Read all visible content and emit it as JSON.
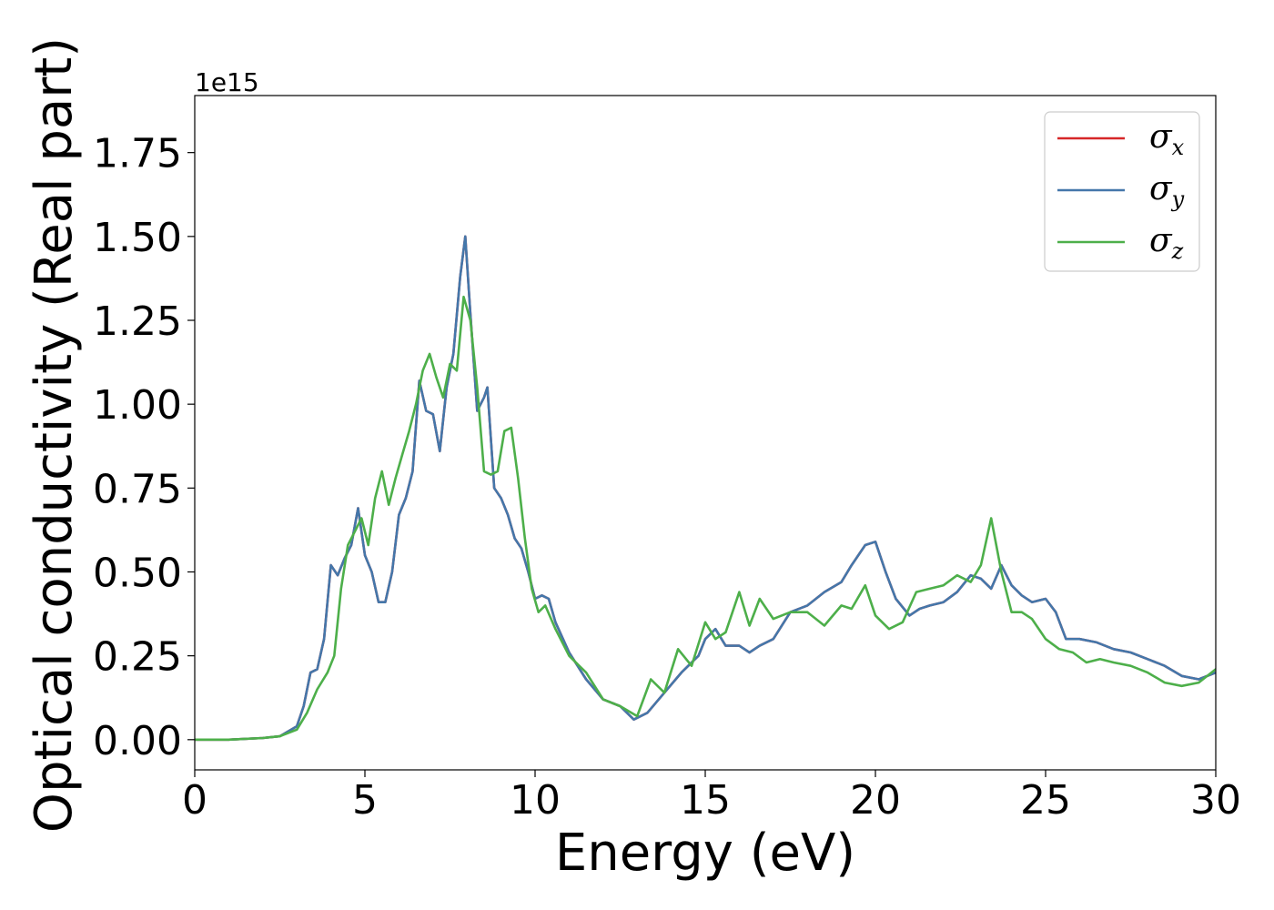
{
  "chart_data": {
    "type": "line",
    "xlabel": "Energy (eV)",
    "ylabel": "Optical conductivity (Real part)",
    "y_offset_label": "1e15",
    "xlim": [
      0,
      30
    ],
    "ylim": [
      -0.09,
      1.92
    ],
    "x_ticks": [
      0,
      5,
      10,
      15,
      20,
      25,
      30
    ],
    "y_ticks": [
      0.0,
      0.25,
      0.5,
      0.75,
      1.0,
      1.25,
      1.5,
      1.75
    ],
    "y_tick_labels": [
      "0.00",
      "0.25",
      "0.50",
      "0.75",
      "1.00",
      "1.25",
      "1.50",
      "1.75"
    ],
    "grid": false,
    "legend_position": "top-right",
    "series": [
      {
        "name": "σx",
        "legend_base": "σ",
        "legend_sub": "x",
        "color": "#d62728",
        "x": [
          0,
          1,
          2,
          2.5,
          3,
          3.2,
          3.4,
          3.6,
          3.8,
          4.0,
          4.2,
          4.4,
          4.6,
          4.8,
          5.0,
          5.2,
          5.4,
          5.6,
          5.8,
          6.0,
          6.2,
          6.4,
          6.6,
          6.8,
          7.0,
          7.2,
          7.4,
          7.6,
          7.8,
          7.95,
          8.1,
          8.3,
          8.5,
          8.6,
          8.8,
          9.0,
          9.2,
          9.4,
          9.6,
          9.8,
          10.0,
          10.2,
          10.4,
          10.6,
          11.0,
          11.5,
          12.0,
          12.5,
          12.9,
          13.3,
          13.8,
          14.3,
          14.8,
          15.0,
          15.3,
          15.6,
          16.0,
          16.3,
          16.6,
          17.0,
          17.5,
          18.0,
          18.5,
          19.0,
          19.3,
          19.7,
          20.0,
          20.3,
          20.6,
          21.0,
          21.3,
          21.6,
          22.0,
          22.4,
          22.8,
          23.1,
          23.4,
          23.7,
          24.0,
          24.3,
          24.6,
          25.0,
          25.3,
          25.6,
          26.0,
          26.5,
          27.0,
          27.5,
          28.0,
          28.5,
          29.0,
          29.5,
          30.0
        ],
        "values": [
          0,
          0,
          0.005,
          0.01,
          0.04,
          0.1,
          0.2,
          0.21,
          0.3,
          0.52,
          0.49,
          0.54,
          0.58,
          0.69,
          0.55,
          0.5,
          0.41,
          0.41,
          0.5,
          0.67,
          0.72,
          0.8,
          1.07,
          0.98,
          0.97,
          0.86,
          1.05,
          1.15,
          1.38,
          1.5,
          1.27,
          0.98,
          1.02,
          1.05,
          0.75,
          0.72,
          0.67,
          0.6,
          0.57,
          0.5,
          0.42,
          0.43,
          0.42,
          0.35,
          0.26,
          0.18,
          0.12,
          0.1,
          0.06,
          0.08,
          0.14,
          0.2,
          0.25,
          0.3,
          0.33,
          0.28,
          0.28,
          0.26,
          0.28,
          0.3,
          0.38,
          0.4,
          0.44,
          0.47,
          0.52,
          0.58,
          0.59,
          0.5,
          0.42,
          0.37,
          0.39,
          0.4,
          0.41,
          0.44,
          0.49,
          0.48,
          0.45,
          0.52,
          0.46,
          0.43,
          0.41,
          0.42,
          0.38,
          0.3,
          0.3,
          0.29,
          0.27,
          0.26,
          0.24,
          0.22,
          0.19,
          0.18,
          0.2
        ]
      },
      {
        "name": "σy",
        "legend_base": "σ",
        "legend_sub": "y",
        "color": "#4477aa",
        "x": [
          0,
          1,
          2,
          2.5,
          3,
          3.2,
          3.4,
          3.6,
          3.8,
          4.0,
          4.2,
          4.4,
          4.6,
          4.8,
          5.0,
          5.2,
          5.4,
          5.6,
          5.8,
          6.0,
          6.2,
          6.4,
          6.6,
          6.8,
          7.0,
          7.2,
          7.4,
          7.6,
          7.8,
          7.95,
          8.1,
          8.3,
          8.5,
          8.6,
          8.8,
          9.0,
          9.2,
          9.4,
          9.6,
          9.8,
          10.0,
          10.2,
          10.4,
          10.6,
          11.0,
          11.5,
          12.0,
          12.5,
          12.9,
          13.3,
          13.8,
          14.3,
          14.8,
          15.0,
          15.3,
          15.6,
          16.0,
          16.3,
          16.6,
          17.0,
          17.5,
          18.0,
          18.5,
          19.0,
          19.3,
          19.7,
          20.0,
          20.3,
          20.6,
          21.0,
          21.3,
          21.6,
          22.0,
          22.4,
          22.8,
          23.1,
          23.4,
          23.7,
          24.0,
          24.3,
          24.6,
          25.0,
          25.3,
          25.6,
          26.0,
          26.5,
          27.0,
          27.5,
          28.0,
          28.5,
          29.0,
          29.5,
          30.0
        ],
        "values": [
          0,
          0,
          0.005,
          0.01,
          0.04,
          0.1,
          0.2,
          0.21,
          0.3,
          0.52,
          0.49,
          0.54,
          0.58,
          0.69,
          0.55,
          0.5,
          0.41,
          0.41,
          0.5,
          0.67,
          0.72,
          0.8,
          1.07,
          0.98,
          0.97,
          0.86,
          1.05,
          1.15,
          1.38,
          1.5,
          1.27,
          0.98,
          1.02,
          1.05,
          0.75,
          0.72,
          0.67,
          0.6,
          0.57,
          0.5,
          0.42,
          0.43,
          0.42,
          0.35,
          0.26,
          0.18,
          0.12,
          0.1,
          0.06,
          0.08,
          0.14,
          0.2,
          0.25,
          0.3,
          0.33,
          0.28,
          0.28,
          0.26,
          0.28,
          0.3,
          0.38,
          0.4,
          0.44,
          0.47,
          0.52,
          0.58,
          0.59,
          0.5,
          0.42,
          0.37,
          0.39,
          0.4,
          0.41,
          0.44,
          0.49,
          0.48,
          0.45,
          0.52,
          0.46,
          0.43,
          0.41,
          0.42,
          0.38,
          0.3,
          0.3,
          0.29,
          0.27,
          0.26,
          0.24,
          0.22,
          0.19,
          0.18,
          0.2
        ]
      },
      {
        "name": "σz",
        "legend_base": "σ",
        "legend_sub": "z",
        "color": "#4daf4a",
        "x": [
          0,
          1,
          2,
          2.5,
          3,
          3.3,
          3.6,
          3.9,
          4.1,
          4.3,
          4.5,
          4.7,
          4.9,
          5.1,
          5.3,
          5.5,
          5.7,
          5.9,
          6.1,
          6.3,
          6.5,
          6.7,
          6.9,
          7.1,
          7.3,
          7.5,
          7.7,
          7.9,
          8.1,
          8.3,
          8.5,
          8.7,
          8.9,
          9.1,
          9.3,
          9.5,
          9.7,
          9.9,
          10.1,
          10.3,
          10.6,
          11.0,
          11.5,
          12.0,
          12.5,
          13.0,
          13.4,
          13.8,
          14.2,
          14.6,
          15.0,
          15.3,
          15.6,
          16.0,
          16.3,
          16.6,
          17.0,
          17.5,
          18.0,
          18.5,
          19.0,
          19.3,
          19.7,
          20.0,
          20.4,
          20.8,
          21.2,
          21.6,
          22.0,
          22.4,
          22.8,
          23.1,
          23.4,
          23.7,
          24.0,
          24.3,
          24.6,
          25.0,
          25.4,
          25.8,
          26.2,
          26.6,
          27.0,
          27.5,
          28.0,
          28.5,
          29.0,
          29.5,
          30.0
        ],
        "values": [
          0,
          0,
          0.005,
          0.01,
          0.03,
          0.08,
          0.15,
          0.2,
          0.25,
          0.45,
          0.58,
          0.62,
          0.66,
          0.58,
          0.72,
          0.8,
          0.7,
          0.78,
          0.85,
          0.92,
          1.0,
          1.1,
          1.15,
          1.08,
          1.02,
          1.12,
          1.1,
          1.32,
          1.25,
          1.05,
          0.8,
          0.79,
          0.8,
          0.92,
          0.93,
          0.78,
          0.6,
          0.45,
          0.38,
          0.4,
          0.33,
          0.25,
          0.2,
          0.12,
          0.1,
          0.07,
          0.18,
          0.14,
          0.27,
          0.22,
          0.35,
          0.3,
          0.32,
          0.44,
          0.34,
          0.42,
          0.36,
          0.38,
          0.38,
          0.34,
          0.4,
          0.39,
          0.46,
          0.37,
          0.33,
          0.35,
          0.44,
          0.45,
          0.46,
          0.49,
          0.47,
          0.52,
          0.66,
          0.5,
          0.38,
          0.38,
          0.36,
          0.3,
          0.27,
          0.26,
          0.23,
          0.24,
          0.23,
          0.22,
          0.2,
          0.17,
          0.16,
          0.17,
          0.21
        ]
      }
    ]
  }
}
